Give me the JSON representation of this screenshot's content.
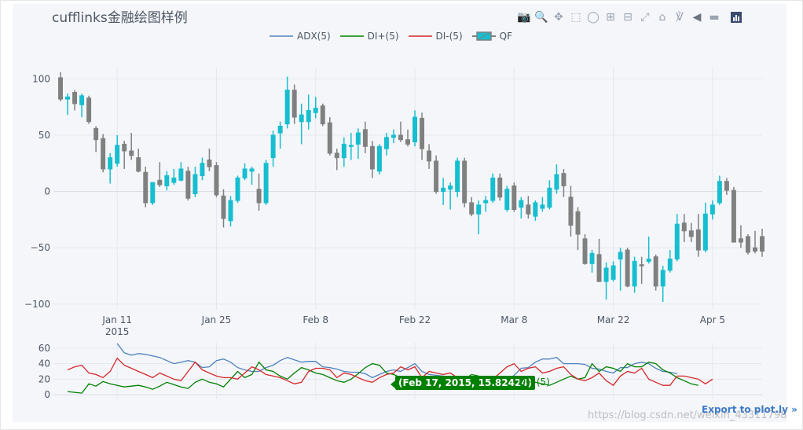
{
  "title": "cufflinks金融绘图样例",
  "modebar": [
    "camera-icon",
    "zoom-icon",
    "pan-icon",
    "box-select-icon",
    "lasso-icon",
    "zoom-in-icon",
    "zoom-out-icon",
    "autoscale-icon",
    "reset-axes-icon",
    "spike-lines-icon",
    "hover-closest-icon",
    "hover-compare-icon",
    "plotly-logo-icon"
  ],
  "legend": [
    {
      "name": "ADX(5)",
      "color": "#4f81bd",
      "kind": "line"
    },
    {
      "name": "DI+(5)",
      "color": "#008000",
      "kind": "line"
    },
    {
      "name": "DI-(5)",
      "color": "#d62728",
      "kind": "line"
    },
    {
      "name": "QF",
      "color": "#17becf",
      "kind": "candle"
    }
  ],
  "hover": {
    "text": "(Feb 17, 2015, 15.82424)",
    "name": "DI+(5)"
  },
  "export_label": "Export to plot.ly »",
  "watermark": "https://blog.csdn.net/weixin_43311798",
  "chart_data": [
    {
      "type": "candlestick",
      "name": "QF",
      "x_range": [
        "2015-01-03",
        "2015-04-10"
      ],
      "x_ticks": [
        "Jan 11",
        "Jan 25",
        "Feb 8",
        "Feb 22",
        "Mar 8",
        "Mar 22",
        "Apr 5"
      ],
      "x_tick_sub": "2015",
      "ylim": [
        -105,
        110
      ],
      "y_ticks": [
        100,
        50,
        0,
        -50,
        -100
      ],
      "y_tick_labels": [
        "100",
        "50",
        "0",
        "−50",
        "−100"
      ],
      "colors": {
        "increasing": "#17becf",
        "decreasing": "#808080"
      },
      "grid": true,
      "candles": [
        [
          "2015-01-03",
          101,
          106,
          80,
          82
        ],
        [
          "2015-01-04",
          82,
          87,
          68,
          84
        ],
        [
          "2015-01-05",
          88,
          90,
          72,
          78
        ],
        [
          "2015-01-06",
          77,
          87,
          66,
          85
        ],
        [
          "2015-01-07",
          83,
          85,
          60,
          62
        ],
        [
          "2015-01-08",
          56,
          58,
          35,
          46
        ],
        [
          "2015-01-09",
          47,
          51,
          17,
          20
        ],
        [
          "2015-01-10",
          20,
          34,
          7,
          30
        ],
        [
          "2015-01-11",
          25,
          50,
          22,
          41
        ],
        [
          "2015-01-12",
          42,
          45,
          20,
          36
        ],
        [
          "2015-01-13",
          36,
          52,
          28,
          32
        ],
        [
          "2015-01-14",
          30,
          38,
          17,
          18
        ],
        [
          "2015-01-15",
          17,
          22,
          -14,
          -10
        ],
        [
          "2015-01-16",
          -10,
          8,
          -12,
          8
        ],
        [
          "2015-01-17",
          10,
          26,
          4,
          6
        ],
        [
          "2015-01-18",
          5,
          18,
          1,
          14
        ],
        [
          "2015-01-19",
          8,
          20,
          6,
          12
        ],
        [
          "2015-01-20",
          10,
          26,
          9,
          20
        ],
        [
          "2015-01-21",
          18,
          22,
          -8,
          -6
        ],
        [
          "2015-01-22",
          -2,
          22,
          -5,
          15
        ],
        [
          "2015-01-23",
          14,
          30,
          10,
          25
        ],
        [
          "2015-01-24",
          28,
          38,
          18,
          22
        ],
        [
          "2015-01-25",
          23,
          26,
          -5,
          -3
        ],
        [
          "2015-01-26",
          -4,
          2,
          -32,
          -24
        ],
        [
          "2015-01-27",
          -26,
          -4,
          -31,
          -8
        ],
        [
          "2015-01-28",
          -8,
          14,
          -10,
          12
        ],
        [
          "2015-01-29",
          12,
          25,
          10,
          20
        ],
        [
          "2015-01-30",
          18,
          22,
          6,
          20
        ],
        [
          "2015-01-31",
          2,
          16,
          -17,
          -10
        ],
        [
          "2015-02-01",
          -10,
          28,
          -12,
          25
        ],
        [
          "2015-02-02",
          30,
          54,
          22,
          50
        ],
        [
          "2015-02-03",
          52,
          62,
          38,
          58
        ],
        [
          "2015-02-04",
          60,
          102,
          56,
          90
        ],
        [
          "2015-02-05",
          90,
          95,
          60,
          66
        ],
        [
          "2015-02-06",
          62,
          78,
          42,
          68
        ],
        [
          "2015-02-07",
          62,
          86,
          55,
          72
        ],
        [
          "2015-02-08",
          70,
          84,
          65,
          74
        ],
        [
          "2015-02-09",
          76,
          78,
          58,
          60
        ],
        [
          "2015-02-10",
          61,
          66,
          32,
          34
        ],
        [
          "2015-02-11",
          34,
          38,
          19,
          30
        ],
        [
          "2015-02-12",
          30,
          48,
          22,
          42
        ],
        [
          "2015-02-13",
          40,
          52,
          28,
          41
        ],
        [
          "2015-02-14",
          42,
          56,
          29,
          52
        ],
        [
          "2015-02-15",
          55,
          62,
          34,
          40
        ],
        [
          "2015-02-16",
          40,
          45,
          12,
          20
        ],
        [
          "2015-02-17",
          18,
          42,
          15,
          40
        ],
        [
          "2015-02-18",
          38,
          52,
          32,
          48
        ],
        [
          "2015-02-19",
          48,
          55,
          43,
          50
        ],
        [
          "2015-02-20",
          50,
          62,
          44,
          46
        ],
        [
          "2015-02-21",
          46,
          55,
          40,
          42
        ],
        [
          "2015-02-22",
          44,
          72,
          40,
          66
        ],
        [
          "2015-02-23",
          65,
          70,
          28,
          38
        ],
        [
          "2015-02-24",
          36,
          42,
          20,
          27
        ],
        [
          "2015-02-25",
          27,
          32,
          -2,
          0
        ],
        [
          "2015-02-26",
          0,
          12,
          -12,
          3
        ],
        [
          "2015-02-27",
          2,
          8,
          -16,
          5
        ],
        [
          "2015-02-28",
          0,
          30,
          -5,
          27
        ],
        [
          "2015-03-01",
          27,
          30,
          -14,
          -10
        ],
        [
          "2015-03-02",
          -10,
          -5,
          -22,
          -20
        ],
        [
          "2015-03-03",
          -20,
          -8,
          -38,
          -12
        ],
        [
          "2015-03-04",
          -10,
          -4,
          -18,
          -8
        ],
        [
          "2015-03-05",
          -8,
          16,
          -10,
          12
        ],
        [
          "2015-03-06",
          12,
          16,
          -8,
          -5
        ],
        [
          "2015-03-07",
          -16,
          5,
          -18,
          2
        ],
        [
          "2015-03-08",
          5,
          8,
          -18,
          -16
        ],
        [
          "2015-03-09",
          -14,
          -5,
          -24,
          -8
        ],
        [
          "2015-03-10",
          -12,
          -4,
          -24,
          -20
        ],
        [
          "2015-03-11",
          -22,
          -8,
          -26,
          -10
        ],
        [
          "2015-03-12",
          -15,
          -5,
          -18,
          -12
        ],
        [
          "2015-03-13",
          -14,
          10,
          -16,
          3
        ],
        [
          "2015-03-14",
          2,
          24,
          -2,
          15
        ],
        [
          "2015-03-15",
          16,
          20,
          -5,
          5
        ],
        [
          "2015-03-16",
          -5,
          5,
          -40,
          -30
        ],
        [
          "2015-03-17",
          -18,
          -14,
          -52,
          -38
        ],
        [
          "2015-03-18",
          -42,
          -38,
          -65,
          -64
        ],
        [
          "2015-03-19",
          -64,
          -52,
          -72,
          -55
        ],
        [
          "2015-03-20",
          -56,
          -42,
          -80,
          -80
        ],
        [
          "2015-03-21",
          -80,
          -63,
          -96,
          -68
        ],
        [
          "2015-03-22",
          -78,
          -62,
          -80,
          -66
        ],
        [
          "2015-03-23",
          -60,
          -50,
          -88,
          -54
        ],
        [
          "2015-03-24",
          -52,
          -50,
          -85,
          -84
        ],
        [
          "2015-03-25",
          -84,
          -58,
          -90,
          -62
        ],
        [
          "2015-03-26",
          -65,
          -58,
          -82,
          -66
        ],
        [
          "2015-03-27",
          -62,
          -40,
          -64,
          -60
        ],
        [
          "2015-03-28",
          -58,
          -56,
          -88,
          -84
        ],
        [
          "2015-03-29",
          -84,
          -66,
          -98,
          -70
        ],
        [
          "2015-03-30",
          -70,
          -52,
          -72,
          -60
        ],
        [
          "2015-03-31",
          -60,
          -20,
          -62,
          -29
        ],
        [
          "2015-04-01",
          -28,
          -20,
          -45,
          -35
        ],
        [
          "2015-04-02",
          -35,
          -28,
          -45,
          -40
        ],
        [
          "2015-04-03",
          -34,
          -20,
          -58,
          -52
        ],
        [
          "2015-04-04",
          -52,
          -10,
          -54,
          -20
        ],
        [
          "2015-04-05",
          -20,
          -8,
          -25,
          -12
        ],
        [
          "2015-04-06",
          -10,
          14,
          -12,
          9
        ],
        [
          "2015-04-07",
          9,
          12,
          -3,
          1
        ],
        [
          "2015-04-08",
          1,
          4,
          -45,
          -45
        ],
        [
          "2015-04-09",
          -42,
          -30,
          -50,
          -45
        ],
        [
          "2015-04-10",
          -40,
          -38,
          -56,
          -54
        ],
        [
          "2015-04-11",
          -50,
          -35,
          -55,
          -53
        ],
        [
          "2015-04-12",
          -40,
          -33,
          -58,
          -53
        ]
      ]
    },
    {
      "type": "line",
      "x_range": [
        "2015-01-03",
        "2015-04-10"
      ],
      "ylim": [
        -5,
        67
      ],
      "y_ticks": [
        60,
        40,
        20,
        0
      ],
      "y_tick_labels": [
        "60",
        "40",
        "20",
        "0"
      ],
      "grid": true,
      "series": [
        {
          "name": "ADX(5)",
          "color": "#4f81bd",
          "start": "2015-01-11",
          "values": [
            66,
            54,
            51,
            53,
            52,
            50,
            48,
            44,
            40,
            42,
            44,
            42,
            35,
            36,
            44,
            46,
            42,
            35,
            32,
            30,
            30,
            35,
            38,
            44,
            48,
            45,
            42,
            43,
            43,
            36,
            35,
            33,
            30,
            29,
            29,
            27,
            22,
            26,
            30,
            32,
            30,
            35,
            40,
            30,
            26,
            25,
            24,
            22,
            22,
            22,
            19,
            18,
            14,
            14,
            15,
            18,
            25,
            34,
            35,
            42,
            46,
            46,
            48,
            40,
            40,
            40,
            39,
            34,
            33,
            30,
            28,
            35,
            35,
            40,
            42,
            40,
            34,
            30,
            29,
            27
          ]
        },
        {
          "name": "DI+(5)",
          "color": "#008000",
          "start": "2015-01-04",
          "values": [
            4,
            3,
            2,
            14,
            11,
            17,
            14,
            12,
            10,
            11,
            12,
            10,
            7,
            11,
            16,
            13,
            10,
            8,
            16,
            20,
            16,
            14,
            10,
            20,
            30,
            22,
            26,
            42,
            32,
            30,
            24,
            20,
            28,
            35,
            32,
            28,
            26,
            22,
            18,
            16,
            20,
            27,
            35,
            40,
            38,
            28,
            26,
            22,
            20,
            18,
            15,
            16,
            16,
            16,
            18,
            20,
            20,
            26,
            24,
            22,
            22,
            14,
            12,
            10,
            8,
            12,
            16,
            14,
            12,
            16,
            20,
            24,
            20,
            22,
            40,
            30,
            36,
            34,
            30,
            40,
            36,
            36,
            42,
            40,
            32,
            28,
            22,
            18,
            14,
            12
          ]
        },
        {
          "name": "DI-(5)",
          "color": "#d62728",
          "start": "2015-01-04",
          "values": [
            32,
            36,
            38,
            28,
            26,
            22,
            30,
            47,
            38,
            34,
            30,
            26,
            22,
            28,
            24,
            20,
            18,
            30,
            42,
            32,
            28,
            24,
            22,
            22,
            20,
            28,
            36,
            32,
            26,
            24,
            22,
            18,
            14,
            16,
            30,
            34,
            34,
            32,
            22,
            28,
            26,
            22,
            18,
            16,
            22,
            26,
            28,
            36,
            32,
            36,
            22,
            30,
            28,
            26,
            28,
            22,
            18,
            12,
            10,
            14,
            20,
            28,
            36,
            40,
            30,
            34,
            36,
            28,
            30,
            34,
            36,
            26,
            20,
            18,
            22,
            28,
            18,
            12,
            24,
            30,
            28,
            34,
            20,
            16,
            12,
            12,
            24,
            24,
            22,
            20,
            14,
            20
          ]
        }
      ]
    }
  ]
}
